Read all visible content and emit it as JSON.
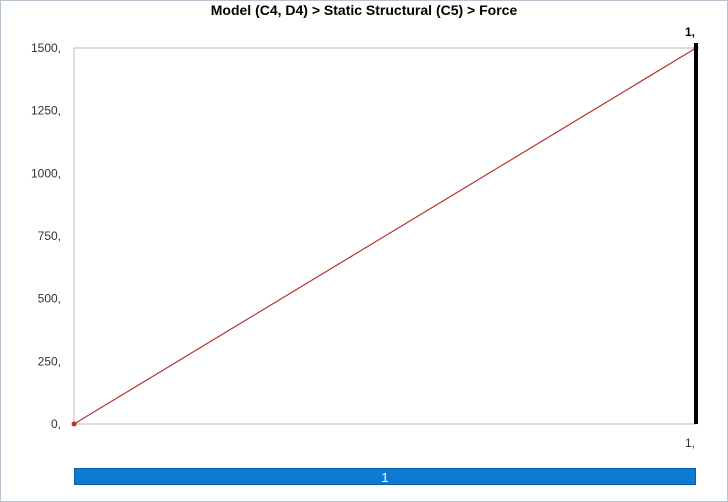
{
  "chart_data": {
    "type": "line",
    "title": "Model (C4, D4) > Static Structural (C5) > Force",
    "x": [
      0,
      1
    ],
    "series": [
      {
        "values": [
          0,
          1500
        ],
        "color": "#b8312f"
      }
    ],
    "ylim": [
      0,
      1500
    ],
    "xlim": [
      0,
      1
    ],
    "yticks": [
      0,
      250,
      500,
      750,
      1000,
      1250,
      1500
    ],
    "ytick_labels": [
      "0,",
      "250,",
      "500,",
      "750,",
      "1000,",
      "1250,",
      "1500,"
    ],
    "xtick_labels": [
      "1,"
    ],
    "top_marker_label": "1,",
    "grid": false
  },
  "step_bar": {
    "label": "1",
    "color": "#0e7ad1"
  }
}
